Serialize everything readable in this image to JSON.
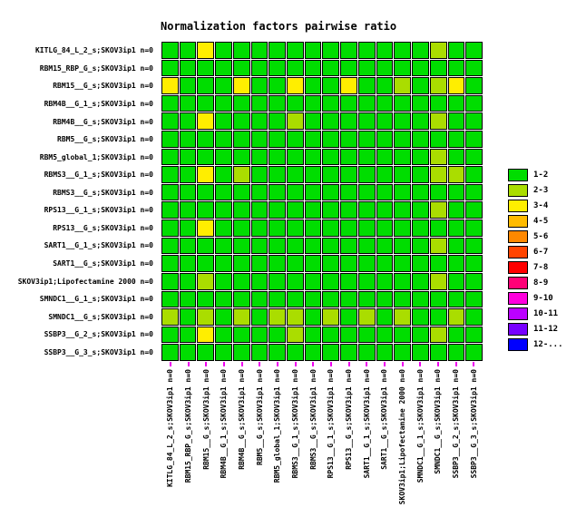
{
  "chart_data": {
    "type": "heatmap",
    "title": "Normalization factors pairwise ratio",
    "labels": [
      "KITLG_84_L_2_s;SKOV3ip1 n=0",
      "RBM15_RBP_G_s;SKOV3ip1 n=0",
      "RBM15__G_s;SKOV3ip1 n=0",
      "RBM4B__G_1_s;SKOV3ip1 n=0",
      "RBM4B__G_s;SKOV3ip1 n=0",
      "RBM5__G_s;SKOV3ip1 n=0",
      "RBM5_global_1;SKOV3ip1 n=0",
      "RBMS3__G_1_s;SKOV3ip1 n=0",
      "RBMS3__G_s;SKOV3ip1 n=0",
      "RPS13__G_1_s;SKOV3ip1 n=0",
      "RPS13__G_s;SKOV3ip1 n=0",
      "SART1__G_1_s;SKOV3ip1 n=0",
      "SART1__G_s;SKOV3ip1 n=0",
      "SKOV3ip1;Lipofectamine 2000 n=0",
      "SMNDC1__G_1_s;SKOV3ip1 n=0",
      "SMNDC1__G_s;SKOV3ip1 n=0",
      "SSBP3__G_2_s;SKOV3ip1 n=0",
      "SSBP3__G_3_s;SKOV3ip1 n=0"
    ],
    "bins": [
      {
        "label": "1-2",
        "color": "#00dd00"
      },
      {
        "label": "2-3",
        "color": "#aadd00"
      },
      {
        "label": "3-4",
        "color": "#ffee00"
      },
      {
        "label": "4-5",
        "color": "#ffbb00"
      },
      {
        "label": "5-6",
        "color": "#ff8800"
      },
      {
        "label": "6-7",
        "color": "#ff4400"
      },
      {
        "label": "7-8",
        "color": "#ff0000"
      },
      {
        "label": "8-9",
        "color": "#ff0077"
      },
      {
        "label": "9-10",
        "color": "#ff00dd"
      },
      {
        "label": "10-11",
        "color": "#bb00ff"
      },
      {
        "label": "11-12",
        "color": "#7700ff"
      },
      {
        "label": "12-...",
        "color": "#0000ff"
      }
    ],
    "matrix_bins": [
      [
        1,
        1,
        3,
        1,
        1,
        1,
        1,
        1,
        1,
        1,
        1,
        1,
        1,
        1,
        1,
        2,
        1,
        1
      ],
      [
        1,
        1,
        1,
        1,
        1,
        1,
        1,
        1,
        1,
        1,
        1,
        1,
        1,
        1,
        1,
        1,
        1,
        1
      ],
      [
        3,
        1,
        1,
        1,
        3,
        1,
        1,
        3,
        1,
        1,
        3,
        1,
        1,
        2,
        1,
        2,
        3,
        1
      ],
      [
        1,
        1,
        1,
        1,
        1,
        1,
        1,
        1,
        1,
        1,
        1,
        1,
        1,
        1,
        1,
        1,
        1,
        1
      ],
      [
        1,
        1,
        3,
        1,
        1,
        1,
        1,
        2,
        1,
        1,
        1,
        1,
        1,
        1,
        1,
        2,
        1,
        1
      ],
      [
        1,
        1,
        1,
        1,
        1,
        1,
        1,
        1,
        1,
        1,
        1,
        1,
        1,
        1,
        1,
        1,
        1,
        1
      ],
      [
        1,
        1,
        1,
        1,
        1,
        1,
        1,
        1,
        1,
        1,
        1,
        1,
        1,
        1,
        1,
        2,
        1,
        1
      ],
      [
        1,
        1,
        3,
        1,
        2,
        1,
        1,
        1,
        1,
        1,
        1,
        1,
        1,
        1,
        1,
        2,
        2,
        1
      ],
      [
        1,
        1,
        1,
        1,
        1,
        1,
        1,
        1,
        1,
        1,
        1,
        1,
        1,
        1,
        1,
        1,
        1,
        1
      ],
      [
        1,
        1,
        1,
        1,
        1,
        1,
        1,
        1,
        1,
        1,
        1,
        1,
        1,
        1,
        1,
        2,
        1,
        1
      ],
      [
        1,
        1,
        3,
        1,
        1,
        1,
        1,
        1,
        1,
        1,
        1,
        1,
        1,
        1,
        1,
        1,
        1,
        1
      ],
      [
        1,
        1,
        1,
        1,
        1,
        1,
        1,
        1,
        1,
        1,
        1,
        1,
        1,
        1,
        1,
        2,
        1,
        1
      ],
      [
        1,
        1,
        1,
        1,
        1,
        1,
        1,
        1,
        1,
        1,
        1,
        1,
        1,
        1,
        1,
        1,
        1,
        1
      ],
      [
        1,
        1,
        2,
        1,
        1,
        1,
        1,
        1,
        1,
        1,
        1,
        1,
        1,
        1,
        1,
        2,
        1,
        1
      ],
      [
        1,
        1,
        1,
        1,
        1,
        1,
        1,
        1,
        1,
        1,
        1,
        1,
        1,
        1,
        1,
        1,
        1,
        1
      ],
      [
        2,
        1,
        2,
        1,
        2,
        1,
        2,
        2,
        1,
        2,
        1,
        2,
        1,
        2,
        1,
        1,
        2,
        1
      ],
      [
        1,
        1,
        3,
        1,
        1,
        1,
        1,
        2,
        1,
        1,
        1,
        1,
        1,
        1,
        1,
        2,
        1,
        1
      ],
      [
        1,
        1,
        1,
        1,
        1,
        1,
        1,
        1,
        1,
        1,
        1,
        1,
        1,
        1,
        1,
        1,
        1,
        1
      ]
    ],
    "axis_tick_color": "#ee00ee",
    "legend_position": "right",
    "grid": false
  }
}
